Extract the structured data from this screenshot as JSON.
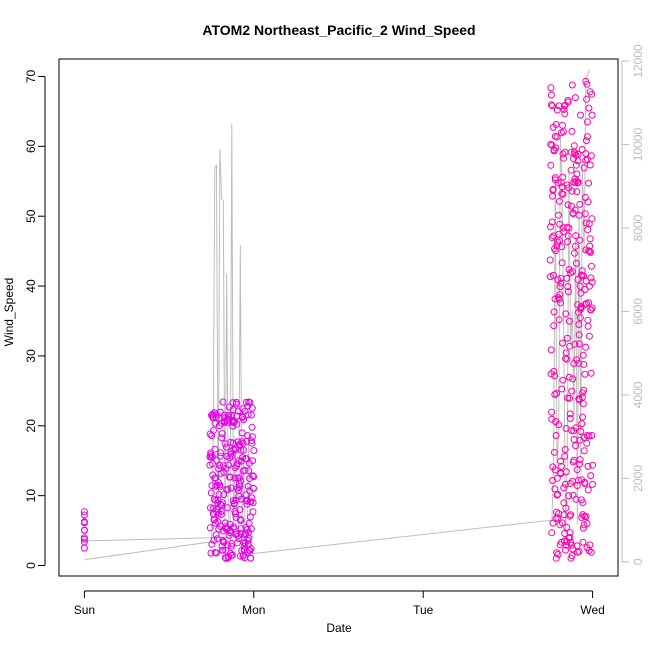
{
  "chart_data": {
    "type": "scatter",
    "title": "ATOM2 Northeast_Pacific_2 Wind_Speed",
    "xlabel": "Date",
    "ylabel": "Wind_Speed",
    "x_tick_labels": [
      "Sun",
      "Mon",
      "Tue",
      "Wed"
    ],
    "x_tick_values": [
      0,
      1,
      2,
      3
    ],
    "xlim": [
      -0.15,
      3.15
    ],
    "ylim": [
      -1.5,
      72.5
    ],
    "y_ticks": [
      0,
      10,
      20,
      30,
      40,
      50,
      60,
      70
    ],
    "y2_ticks": [
      0,
      2000,
      4000,
      6000,
      8000,
      10000,
      12000
    ],
    "y2lim": [
      -340,
      12050
    ],
    "grid": false,
    "colors": {
      "points_early": "#e600e6",
      "points_late": "#ff00aa",
      "secondary_line": "#bdbdbd",
      "axis": "#000000"
    },
    "series": [
      {
        "axis": "left",
        "style": "points",
        "clusters": [
          {
            "x_start": 0.0,
            "x_end": 0.0,
            "n": 10,
            "ymin": 2.5,
            "ymax": 7.7,
            "color": "#e600e6"
          },
          {
            "x_start": 0.74,
            "x_end": 1.0,
            "n": 260,
            "ymin": 1.0,
            "ymax": 23.5,
            "color": "#e600e6"
          },
          {
            "x_start": 2.75,
            "x_end": 3.0,
            "n": 320,
            "ymin": 1.0,
            "ymax": 69.3,
            "color": "#ff00aa"
          }
        ],
        "highlights": [
          {
            "x": 0.0,
            "y": 7.7
          },
          {
            "x": 0.76,
            "y": 21.7
          },
          {
            "x": 0.97,
            "y": 23.4
          },
          {
            "x": 2.78,
            "y": 55.2
          },
          {
            "x": 2.96,
            "y": 69.3
          },
          {
            "x": 2.97,
            "y": 63.5
          },
          {
            "x": 2.96,
            "y": 58.0
          },
          {
            "x": 2.92,
            "y": 2.0
          }
        ]
      },
      {
        "axis": "right",
        "style": "line",
        "x": [
          0.0,
          0.75,
          0.76,
          0.77,
          0.78,
          0.79,
          0.8,
          0.81,
          0.82,
          0.83,
          0.84,
          0.85,
          0.86,
          0.87,
          0.88,
          0.89,
          0.9,
          0.91,
          0.92,
          0.93,
          0.94,
          0.95,
          0.96,
          0.97,
          0.98,
          1.0,
          2.76,
          2.77,
          2.78,
          2.79,
          2.8,
          2.81,
          2.82,
          2.83,
          2.84,
          2.85,
          2.86,
          2.87,
          2.88,
          2.89,
          2.9,
          2.91,
          2.92,
          2.93,
          2.94,
          2.95,
          2.96,
          2.97,
          2.98
        ],
        "y": [
          50,
          480,
          2500,
          9450,
          9500,
          800,
          9900,
          8700,
          8650,
          700,
          6900,
          900,
          500,
          10500,
          600,
          3000,
          1200,
          800,
          7600,
          900,
          2500,
          400,
          700,
          3000,
          150,
          200,
          1000,
          2300,
          9100,
          2300,
          3100,
          10200,
          8900,
          5300,
          700,
          2300,
          9300,
          5200,
          6000,
          3500,
          7900,
          900,
          8400,
          2500,
          9600,
          7400,
          11600,
          11650,
          11800
        ]
      },
      {
        "axis": "right",
        "style": "line",
        "x": [
          0.0,
          1.0
        ],
        "y": [
          500,
          600
        ]
      }
    ]
  }
}
